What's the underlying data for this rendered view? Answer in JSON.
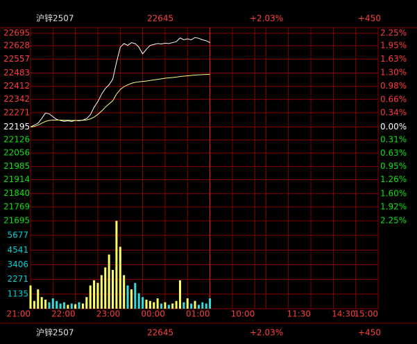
{
  "header": {
    "name": "沪锌2507",
    "price": "22645",
    "change_pct": "+2.03%",
    "change": "+450"
  },
  "chart_data": {
    "type": "line",
    "x": [
      0,
      5,
      10,
      15,
      20,
      25,
      30,
      35,
      40,
      45,
      50,
      55,
      60,
      65,
      70,
      75,
      80,
      85,
      90,
      95,
      100,
      105,
      110,
      115,
      120,
      125,
      130,
      135,
      140,
      145,
      150,
      155,
      160,
      165,
      170,
      175,
      180,
      185,
      190,
      195,
      200,
      205,
      210,
      215,
      220,
      225,
      230,
      235,
      240
    ],
    "xlim": [
      0,
      465
    ],
    "xticks": [
      {
        "value": 0,
        "label": "21:00"
      },
      {
        "value": 60,
        "label": "22:00"
      },
      {
        "value": 120,
        "label": "23:00"
      },
      {
        "value": 180,
        "label": "00:00"
      },
      {
        "value": 240,
        "label": "01:00"
      },
      {
        "value": 300,
        "label": "10:00"
      },
      {
        "value": 375,
        "label": "11:30"
      },
      {
        "value": 435,
        "label": "14:30"
      },
      {
        "value": 465,
        "label": "15:00"
      }
    ],
    "xminor": [
      30,
      90,
      150,
      210,
      270,
      315,
      345,
      405
    ],
    "ylim": [
      21695,
      22695
    ],
    "yticks": [
      22695,
      22628,
      22557,
      22483,
      22412,
      22342,
      22271,
      22195,
      22126,
      22056,
      21985,
      21914,
      21840,
      21769,
      21695
    ],
    "y2lim": [
      -2.25,
      2.25
    ],
    "y2ticks": [
      {
        "value": 2.25,
        "label": "2.25%"
      },
      {
        "value": 1.95,
        "label": "1.95%"
      },
      {
        "value": 1.63,
        "label": "1.63%"
      },
      {
        "value": 1.3,
        "label": "1.30%"
      },
      {
        "value": 0.98,
        "label": "0.98%"
      },
      {
        "value": 0.66,
        "label": "0.66%"
      },
      {
        "value": 0.34,
        "label": "0.34%"
      },
      {
        "value": 0,
        "label": "0.00%"
      },
      {
        "value": -0.31,
        "label": "0.31%"
      },
      {
        "value": -0.63,
        "label": "0.63%"
      },
      {
        "value": -0.95,
        "label": "0.95%"
      },
      {
        "value": -1.26,
        "label": "1.26%"
      },
      {
        "value": -1.6,
        "label": "1.60%"
      },
      {
        "value": -1.92,
        "label": "1.92%"
      },
      {
        "value": -2.25,
        "label": "2.25%"
      }
    ],
    "series": [
      {
        "color": "#ffffff",
        "values": [
          22195,
          22205,
          22215,
          22240,
          22270,
          22265,
          22250,
          22235,
          22230,
          22225,
          22228,
          22225,
          22230,
          22228,
          22232,
          22240,
          22260,
          22300,
          22330,
          22370,
          22400,
          22420,
          22450,
          22540,
          22620,
          22640,
          22630,
          22645,
          22640,
          22620,
          22585,
          22610,
          22630,
          22635,
          22640,
          22638,
          22642,
          22640,
          22645,
          22650,
          22670,
          22660,
          22665,
          22660,
          22672,
          22668,
          22660,
          22655,
          22645
        ]
      },
      {
        "color": "#ffff80",
        "values": [
          22195,
          22198,
          22205,
          22215,
          22225,
          22230,
          22232,
          22232,
          22232,
          22231,
          22231,
          22230,
          22230,
          22230,
          22231,
          22233,
          22238,
          22248,
          22262,
          22280,
          22300,
          22318,
          22335,
          22370,
          22395,
          22410,
          22420,
          22428,
          22433,
          22436,
          22438,
          22440,
          22443,
          22446,
          22449,
          22452,
          22455,
          22457,
          22459,
          22461,
          22464,
          22466,
          22468,
          22470,
          22472,
          22473,
          22474,
          22475,
          22476
        ]
      }
    ],
    "volume": {
      "ylim": [
        0,
        6812
      ],
      "yticks": [
        5677,
        4541,
        3406,
        2271,
        1135
      ],
      "up_color": "#ffff66",
      "down_color": "#33dddd",
      "values": [
        1800,
        600,
        1500,
        900,
        700,
        500,
        800,
        600,
        400,
        500,
        300,
        400,
        350,
        500,
        400,
        900,
        1800,
        2200,
        2000,
        2600,
        3200,
        4200,
        3000,
        6800,
        4800,
        2600,
        1800,
        1500,
        2000,
        1200,
        900,
        700,
        600,
        500,
        800,
        400,
        500,
        300,
        400,
        600,
        2200,
        500,
        800,
        400,
        600,
        300,
        500,
        400,
        800
      ]
    },
    "grid_color": "#8c0000"
  }
}
